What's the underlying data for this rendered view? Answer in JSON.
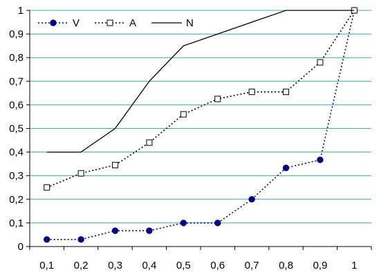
{
  "chart_data": {
    "type": "line",
    "categories": [
      "0,1",
      "0,2",
      "0,3",
      "0,4",
      "0,5",
      "0,6",
      "0,7",
      "0,8",
      "0,9",
      "1"
    ],
    "series": [
      {
        "name": "V",
        "marker": "filled-circle",
        "line": "dotted",
        "color": "#000080",
        "values": [
          0.03,
          0.03,
          0.067,
          0.067,
          0.1,
          0.1,
          0.2,
          0.333,
          0.367,
          1
        ]
      },
      {
        "name": "A",
        "marker": "open-square",
        "line": "dotted",
        "color": "#000000",
        "values": [
          0.25,
          0.31,
          0.345,
          0.44,
          0.56,
          0.625,
          0.655,
          0.655,
          0.78,
          1
        ]
      },
      {
        "name": "N",
        "marker": "none",
        "line": "solid",
        "color": "#000000",
        "values": [
          0.4,
          0.4,
          0.5,
          0.7,
          0.85,
          0.9,
          0.95,
          1,
          1,
          1
        ]
      }
    ],
    "title": "",
    "xlabel": "",
    "ylabel": "",
    "ylim": [
      0,
      1
    ],
    "yticks": [
      "0",
      "0,1",
      "0,2",
      "0,3",
      "0,4",
      "0,5",
      "0,6",
      "0,7",
      "0,8",
      "0,9",
      "1"
    ],
    "grid": true,
    "grid_color": "#3fa9a0",
    "legend_position": "top-left"
  }
}
